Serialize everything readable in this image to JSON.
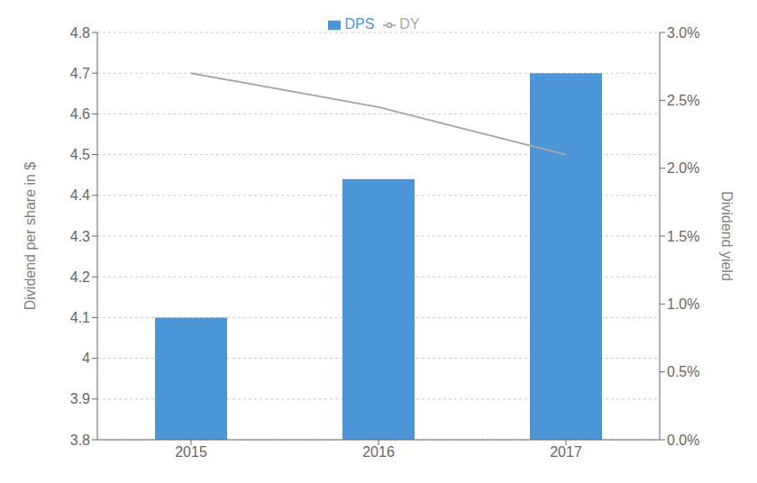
{
  "chart_data": {
    "type": "bar",
    "categories": [
      "2015",
      "2016",
      "2017"
    ],
    "series": [
      {
        "name": "DPS",
        "type": "bar",
        "color": "#4C96D7",
        "values": [
          4.1,
          4.44,
          4.7
        ]
      },
      {
        "name": "DY",
        "type": "line",
        "axis": "y2",
        "color": "#A8A8A8",
        "values": [
          0.027,
          0.0245,
          0.021
        ]
      }
    ],
    "ylabel": "Dividend per share in $",
    "y2label": "Dividend yield",
    "ylim": [
      3.8,
      4.8
    ],
    "yticks": [
      3.8,
      3.9,
      4,
      4.1,
      4.2,
      4.3,
      4.4,
      4.5,
      4.6,
      4.7,
      4.8
    ],
    "y2lim": [
      0.0,
      0.03
    ],
    "y2ticks": [
      {
        "value": 0.0,
        "label": "0.0%"
      },
      {
        "value": 0.005,
        "label": "0.5%"
      },
      {
        "value": 0.01,
        "label": "1.0%"
      },
      {
        "value": 0.015,
        "label": "1.5%"
      },
      {
        "value": 0.02,
        "label": "2.0%"
      },
      {
        "value": 0.025,
        "label": "2.5%"
      },
      {
        "value": 0.03,
        "label": "3.0%"
      }
    ],
    "grid": true,
    "legend": "top"
  }
}
